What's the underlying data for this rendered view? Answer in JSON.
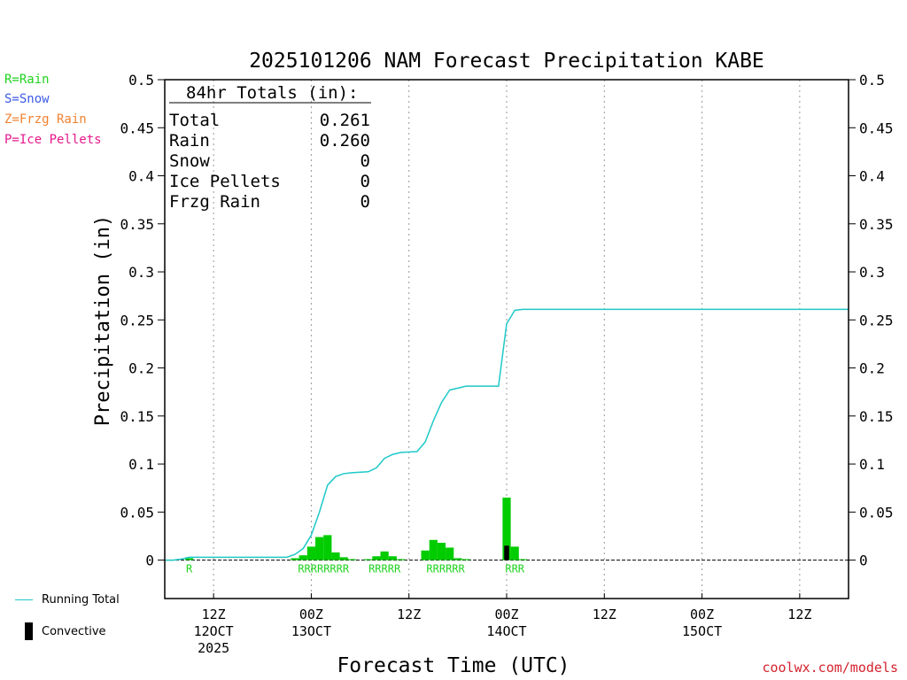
{
  "legend": {
    "rain": {
      "text": "R=Rain",
      "color": "#1fd21f"
    },
    "snow": {
      "text": "S=Snow",
      "color": "#3c5ae6"
    },
    "frzg": {
      "text": "Z=Frzg Rain",
      "color": "#f08232"
    },
    "ice": {
      "text": "P=Ice Pellets",
      "color": "#e6198c"
    },
    "running_total": {
      "text": "Running Total",
      "color": "#1ec8c8"
    },
    "convective": {
      "text": "Convective",
      "color": "#000000"
    }
  },
  "credit": "coolwx.com/models",
  "totals_box": {
    "header": "84hr Totals (in):",
    "rows": [
      {
        "label": "Total",
        "value": "0.261"
      },
      {
        "label": "Rain",
        "value": "0.260"
      },
      {
        "label": "Snow",
        "value": "0"
      },
      {
        "label": "Ice Pellets",
        "value": "0"
      },
      {
        "label": "Frzg Rain",
        "value": "0"
      }
    ]
  },
  "chart_data": {
    "type": "bar",
    "title": "2025101206 NAM Forecast Precipitation KABE",
    "xlabel": "Forecast Time (UTC)",
    "ylabel": "Precipitation (in)",
    "xlim_hours": [
      0,
      84
    ],
    "ylim": [
      -0.04,
      0.5
    ],
    "yticks": [
      0,
      0.05,
      0.1,
      0.15,
      0.2,
      0.25,
      0.3,
      0.35,
      0.4,
      0.45,
      0.5
    ],
    "ytick_labels": [
      "0",
      "0.05",
      "0.1",
      "0.15",
      "0.2",
      "0.25",
      "0.3",
      "0.35",
      "0.4",
      "0.45",
      "0.5"
    ],
    "xticks": [
      {
        "hour": 6,
        "lines": [
          "12Z",
          "12OCT",
          "2025"
        ]
      },
      {
        "hour": 18,
        "lines": [
          "00Z",
          "13OCT"
        ]
      },
      {
        "hour": 30,
        "lines": [
          "12Z"
        ]
      },
      {
        "hour": 42,
        "lines": [
          "00Z",
          "14OCT"
        ]
      },
      {
        "hour": 54,
        "lines": [
          "12Z"
        ]
      },
      {
        "hour": 66,
        "lines": [
          "00Z",
          "15OCT"
        ]
      },
      {
        "hour": 78,
        "lines": [
          "12Z"
        ]
      }
    ],
    "bar_width_hours": 1,
    "series": [
      {
        "name": "Hourly Precipitation",
        "color": "#00cc00",
        "points": [
          {
            "hour": 3,
            "value": 0.002
          },
          {
            "hour": 16,
            "value": 0.002
          },
          {
            "hour": 17,
            "value": 0.005
          },
          {
            "hour": 18,
            "value": 0.014
          },
          {
            "hour": 19,
            "value": 0.024
          },
          {
            "hour": 20,
            "value": 0.026
          },
          {
            "hour": 21,
            "value": 0.008
          },
          {
            "hour": 22,
            "value": 0.003
          },
          {
            "hour": 23,
            "value": 0.001
          },
          {
            "hour": 25,
            "value": 0.001
          },
          {
            "hour": 26,
            "value": 0.004
          },
          {
            "hour": 27,
            "value": 0.009
          },
          {
            "hour": 28,
            "value": 0.004
          },
          {
            "hour": 29,
            "value": 0.001
          },
          {
            "hour": 32,
            "value": 0.01
          },
          {
            "hour": 33,
            "value": 0.021
          },
          {
            "hour": 34,
            "value": 0.018
          },
          {
            "hour": 35,
            "value": 0.013
          },
          {
            "hour": 36,
            "value": 0.002
          },
          {
            "hour": 37,
            "value": 0.001
          },
          {
            "hour": 42,
            "value": 0.065
          },
          {
            "hour": 43,
            "value": 0.014
          },
          {
            "hour": 44,
            "value": 0.001
          }
        ]
      },
      {
        "name": "Convective",
        "color": "#000000",
        "points": [
          {
            "hour": 42,
            "value": 0.015
          }
        ]
      },
      {
        "name": "Running Total",
        "color": "#1ec8c8",
        "points": [
          {
            "hour": 0,
            "value": 0.0
          },
          {
            "hour": 1,
            "value": 0.0
          },
          {
            "hour": 2,
            "value": 0.001
          },
          {
            "hour": 3,
            "value": 0.003
          },
          {
            "hour": 15,
            "value": 0.003
          },
          {
            "hour": 16,
            "value": 0.006
          },
          {
            "hour": 17,
            "value": 0.012
          },
          {
            "hour": 18,
            "value": 0.026
          },
          {
            "hour": 19,
            "value": 0.05
          },
          {
            "hour": 20,
            "value": 0.078
          },
          {
            "hour": 21,
            "value": 0.087
          },
          {
            "hour": 22,
            "value": 0.09
          },
          {
            "hour": 23,
            "value": 0.091
          },
          {
            "hour": 25,
            "value": 0.092
          },
          {
            "hour": 26,
            "value": 0.096
          },
          {
            "hour": 27,
            "value": 0.106
          },
          {
            "hour": 28,
            "value": 0.11
          },
          {
            "hour": 29,
            "value": 0.112
          },
          {
            "hour": 31,
            "value": 0.113
          },
          {
            "hour": 32,
            "value": 0.123
          },
          {
            "hour": 33,
            "value": 0.145
          },
          {
            "hour": 34,
            "value": 0.164
          },
          {
            "hour": 35,
            "value": 0.177
          },
          {
            "hour": 36,
            "value": 0.179
          },
          {
            "hour": 37,
            "value": 0.181
          },
          {
            "hour": 41,
            "value": 0.181
          },
          {
            "hour": 42,
            "value": 0.246
          },
          {
            "hour": 43,
            "value": 0.26
          },
          {
            "hour": 44,
            "value": 0.261
          },
          {
            "hour": 84,
            "value": 0.261
          }
        ]
      }
    ],
    "type_labels": [
      {
        "text": "R",
        "hours": [
          3
        ]
      },
      {
        "text": "RRRRRRRR",
        "hours": [
          16,
          23
        ]
      },
      {
        "text": "RRRRR",
        "hours": [
          25,
          29
        ]
      },
      {
        "text": "RRRRRR",
        "hours": [
          32,
          37
        ]
      },
      {
        "text": "RRR",
        "hours": [
          42,
          44
        ]
      }
    ]
  }
}
